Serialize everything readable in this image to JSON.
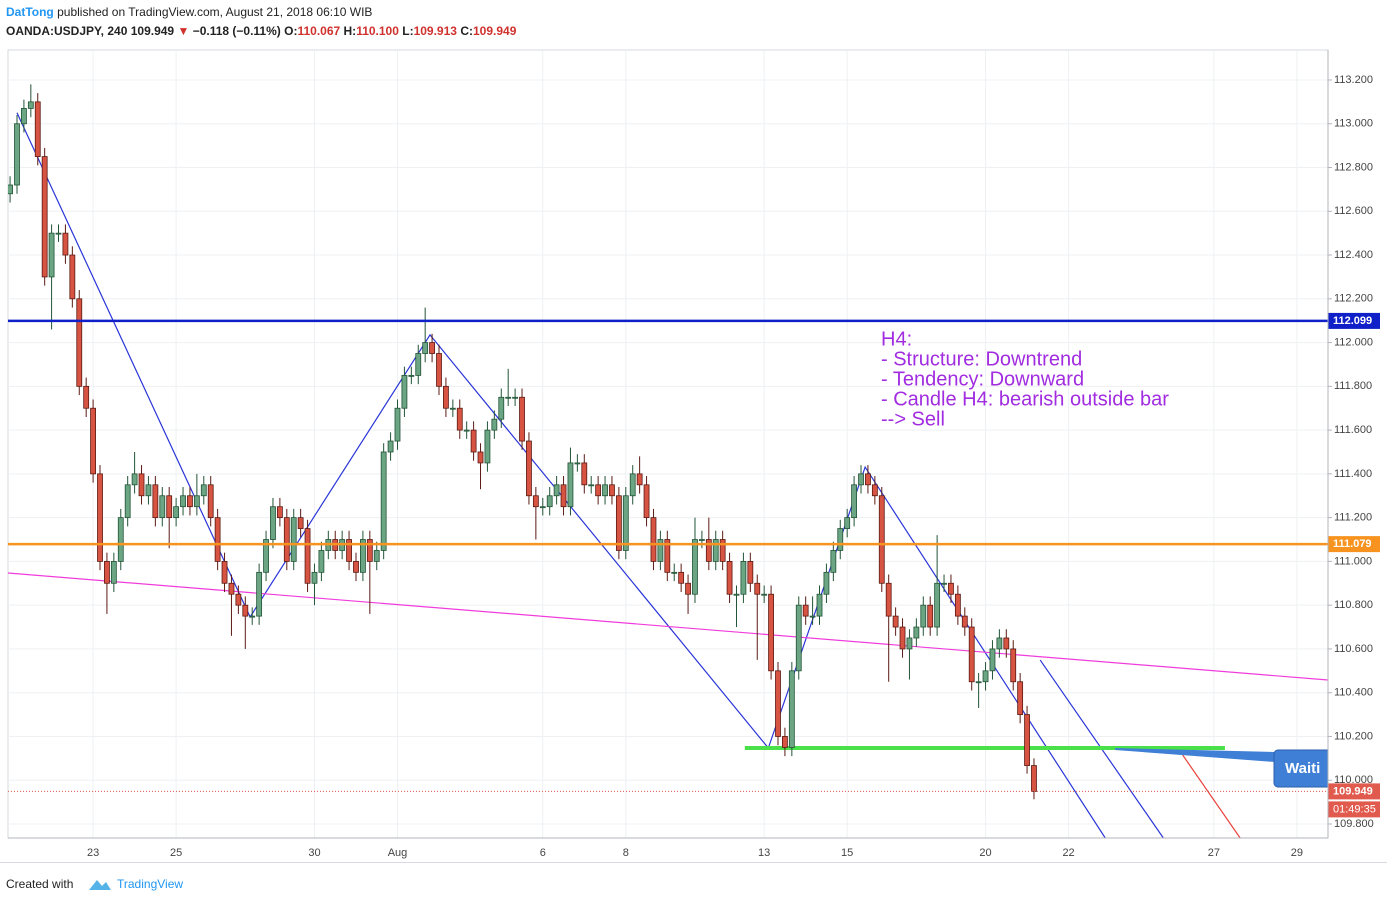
{
  "header": {
    "author": "DatTong",
    "published": " published on TradingView.com, August 21, 2018 06:10 WIB",
    "symbol": "OANDA:USDJPY, 240",
    "price": "109.949",
    "arrow": "▼",
    "change": "−0.118 (−0.11%)",
    "o_label": "O:",
    "o": "110.067",
    "h_label": "H:",
    "h": "110.100",
    "l_label": "L:",
    "l": "109.913",
    "c_label": "C:",
    "c": "109.949"
  },
  "footer": {
    "created": "Created with",
    "brand": "TradingView"
  },
  "chart_data": {
    "type": "candlestick",
    "up_color": "#6ba583",
    "down_color": "#d75442",
    "grid": true,
    "xlim": [
      -0.3,
      190.5
    ],
    "ylim": [
      109.736,
      113.337
    ],
    "xticks": [
      {
        "value": 12,
        "label": "23"
      },
      {
        "value": 24,
        "label": "25"
      },
      {
        "value": 44,
        "label": "30"
      },
      {
        "value": 56,
        "label": "Aug"
      },
      {
        "value": 77,
        "label": "6"
      },
      {
        "value": 89,
        "label": "8"
      },
      {
        "value": 109,
        "label": "13"
      },
      {
        "value": 121,
        "label": "15"
      },
      {
        "value": 141,
        "label": "20"
      },
      {
        "value": 153,
        "label": "22"
      },
      {
        "value": 174,
        "label": "27"
      },
      {
        "value": 186,
        "label": "29"
      }
    ],
    "yticks": [
      {
        "value": 109.8,
        "label": "109.800"
      },
      {
        "value": 110.0,
        "label": "110.000"
      },
      {
        "value": 110.2,
        "label": "110.200"
      },
      {
        "value": 110.4,
        "label": "110.400"
      },
      {
        "value": 110.6,
        "label": "110.600"
      },
      {
        "value": 110.8,
        "label": "110.800"
      },
      {
        "value": 111.0,
        "label": "111.000"
      },
      {
        "value": 111.2,
        "label": "111.200"
      },
      {
        "value": 111.4,
        "label": "111.400"
      },
      {
        "value": 111.6,
        "label": "111.600"
      },
      {
        "value": 111.8,
        "label": "111.800"
      },
      {
        "value": 112.0,
        "label": "112.000"
      },
      {
        "value": 112.2,
        "label": "112.200"
      },
      {
        "value": 112.4,
        "label": "112.400"
      },
      {
        "value": 112.6,
        "label": "112.600"
      },
      {
        "value": 112.8,
        "label": "112.800"
      },
      {
        "value": 113.0,
        "label": "113.000"
      },
      {
        "value": 113.2,
        "label": "113.200"
      }
    ],
    "ohlc": [
      [
        112.68,
        112.76,
        112.64,
        112.72
      ],
      [
        112.72,
        113.04,
        112.68,
        113.0
      ],
      [
        113.0,
        113.11,
        112.96,
        113.07
      ],
      [
        113.07,
        113.18,
        113.03,
        113.1
      ],
      [
        113.1,
        113.14,
        112.81,
        112.85
      ],
      [
        112.85,
        112.89,
        112.26,
        112.3
      ],
      [
        112.3,
        112.54,
        112.06,
        112.5
      ],
      [
        112.5,
        112.54,
        112.46,
        112.5
      ],
      [
        112.5,
        112.54,
        112.36,
        112.4
      ],
      [
        112.4,
        112.44,
        112.16,
        112.2
      ],
      [
        112.2,
        112.24,
        111.76,
        111.8
      ],
      [
        111.8,
        111.84,
        111.66,
        111.7
      ],
      [
        111.7,
        111.74,
        111.36,
        111.4
      ],
      [
        111.4,
        111.44,
        110.96,
        111.0
      ],
      [
        111.0,
        111.04,
        110.76,
        110.9
      ],
      [
        110.9,
        111.04,
        110.86,
        111.0
      ],
      [
        111.0,
        111.24,
        110.96,
        111.2
      ],
      [
        111.2,
        111.39,
        111.16,
        111.35
      ],
      [
        111.35,
        111.5,
        111.31,
        111.4
      ],
      [
        111.4,
        111.44,
        111.26,
        111.3
      ],
      [
        111.3,
        111.39,
        111.26,
        111.35
      ],
      [
        111.35,
        111.39,
        111.16,
        111.2
      ],
      [
        111.2,
        111.34,
        111.16,
        111.3
      ],
      [
        111.3,
        111.34,
        111.06,
        111.2
      ],
      [
        111.2,
        111.29,
        111.16,
        111.25
      ],
      [
        111.25,
        111.34,
        111.21,
        111.3
      ],
      [
        111.3,
        111.34,
        111.21,
        111.25
      ],
      [
        111.25,
        111.4,
        111.21,
        111.3
      ],
      [
        111.3,
        111.39,
        111.26,
        111.35
      ],
      [
        111.35,
        111.39,
        111.16,
        111.2
      ],
      [
        111.2,
        111.24,
        110.96,
        111.0
      ],
      [
        111.0,
        111.04,
        110.86,
        110.9
      ],
      [
        110.9,
        110.94,
        110.66,
        110.85
      ],
      [
        110.85,
        110.89,
        110.76,
        110.8
      ],
      [
        110.8,
        110.84,
        110.6,
        110.75
      ],
      [
        110.75,
        110.79,
        110.71,
        110.75
      ],
      [
        110.75,
        110.99,
        110.71,
        110.95
      ],
      [
        110.95,
        111.14,
        110.91,
        111.1
      ],
      [
        111.1,
        111.29,
        111.06,
        111.25
      ],
      [
        111.25,
        111.29,
        111.16,
        111.2
      ],
      [
        111.2,
        111.24,
        110.96,
        111.0
      ],
      [
        111.0,
        111.24,
        110.96,
        111.2
      ],
      [
        111.2,
        111.24,
        111.11,
        111.15
      ],
      [
        111.15,
        111.19,
        110.86,
        110.9
      ],
      [
        110.9,
        110.99,
        110.8,
        110.95
      ],
      [
        110.95,
        111.09,
        110.91,
        111.05
      ],
      [
        111.05,
        111.14,
        111.01,
        111.1
      ],
      [
        111.1,
        111.14,
        111.01,
        111.05
      ],
      [
        111.05,
        111.14,
        111.01,
        111.1
      ],
      [
        111.1,
        111.14,
        110.96,
        111.0
      ],
      [
        111.0,
        111.04,
        110.91,
        110.95
      ],
      [
        110.95,
        111.14,
        110.91,
        111.1
      ],
      [
        111.1,
        111.14,
        110.76,
        111.0
      ],
      [
        111.0,
        111.09,
        110.96,
        111.05
      ],
      [
        111.05,
        111.54,
        111.01,
        111.5
      ],
      [
        111.5,
        111.59,
        111.46,
        111.55
      ],
      [
        111.55,
        111.74,
        111.51,
        111.7
      ],
      [
        111.7,
        111.89,
        111.66,
        111.85
      ],
      [
        111.85,
        111.89,
        111.81,
        111.85
      ],
      [
        111.85,
        111.99,
        111.81,
        111.95
      ],
      [
        111.95,
        112.16,
        111.91,
        112.0
      ],
      [
        112.0,
        112.04,
        111.91,
        111.95
      ],
      [
        111.95,
        111.99,
        111.76,
        111.8
      ],
      [
        111.8,
        111.84,
        111.66,
        111.7
      ],
      [
        111.7,
        111.74,
        111.66,
        111.7
      ],
      [
        111.7,
        111.74,
        111.56,
        111.6
      ],
      [
        111.6,
        111.64,
        111.56,
        111.6
      ],
      [
        111.6,
        111.64,
        111.46,
        111.5
      ],
      [
        111.5,
        111.54,
        111.33,
        111.45
      ],
      [
        111.45,
        111.64,
        111.41,
        111.6
      ],
      [
        111.6,
        111.69,
        111.56,
        111.65
      ],
      [
        111.65,
        111.79,
        111.61,
        111.75
      ],
      [
        111.75,
        111.88,
        111.71,
        111.75
      ],
      [
        111.75,
        111.79,
        111.71,
        111.75
      ],
      [
        111.75,
        111.79,
        111.51,
        111.55
      ],
      [
        111.55,
        111.59,
        111.26,
        111.3
      ],
      [
        111.3,
        111.34,
        111.1,
        111.25
      ],
      [
        111.25,
        111.29,
        111.21,
        111.25
      ],
      [
        111.25,
        111.34,
        111.21,
        111.3
      ],
      [
        111.3,
        111.39,
        111.26,
        111.35
      ],
      [
        111.35,
        111.39,
        111.21,
        111.25
      ],
      [
        111.25,
        111.52,
        111.21,
        111.45
      ],
      [
        111.45,
        111.49,
        111.41,
        111.45
      ],
      [
        111.45,
        111.49,
        111.31,
        111.35
      ],
      [
        111.35,
        111.39,
        111.31,
        111.35
      ],
      [
        111.35,
        111.39,
        111.26,
        111.3
      ],
      [
        111.3,
        111.39,
        111.26,
        111.35
      ],
      [
        111.35,
        111.39,
        111.26,
        111.3
      ],
      [
        111.3,
        111.34,
        111.01,
        111.05
      ],
      [
        111.05,
        111.34,
        111.01,
        111.3
      ],
      [
        111.3,
        111.44,
        111.26,
        111.4
      ],
      [
        111.4,
        111.48,
        111.31,
        111.35
      ],
      [
        111.35,
        111.39,
        111.16,
        111.2
      ],
      [
        111.2,
        111.24,
        110.96,
        111.0
      ],
      [
        111.0,
        111.14,
        110.96,
        111.1
      ],
      [
        111.1,
        111.14,
        110.91,
        110.95
      ],
      [
        110.95,
        110.99,
        110.91,
        110.95
      ],
      [
        110.95,
        110.99,
        110.86,
        110.9
      ],
      [
        110.9,
        110.94,
        110.76,
        110.85
      ],
      [
        110.85,
        111.2,
        110.81,
        111.1
      ],
      [
        111.1,
        111.14,
        111.06,
        111.1
      ],
      [
        111.1,
        111.2,
        110.96,
        111.0
      ],
      [
        111.0,
        111.14,
        110.96,
        111.1
      ],
      [
        111.1,
        111.14,
        110.96,
        111.0
      ],
      [
        111.0,
        111.04,
        110.81,
        110.85
      ],
      [
        110.85,
        110.89,
        110.7,
        110.85
      ],
      [
        110.85,
        111.04,
        110.81,
        111.0
      ],
      [
        111.0,
        111.04,
        110.86,
        110.9
      ],
      [
        110.9,
        110.94,
        110.55,
        110.85
      ],
      [
        110.85,
        110.89,
        110.81,
        110.85
      ],
      [
        110.85,
        110.89,
        110.46,
        110.5
      ],
      [
        110.5,
        110.54,
        110.16,
        110.2
      ],
      [
        110.2,
        110.24,
        110.11,
        110.15
      ],
      [
        110.15,
        110.54,
        110.11,
        110.5
      ],
      [
        110.5,
        110.84,
        110.46,
        110.8
      ],
      [
        110.8,
        110.84,
        110.71,
        110.75
      ],
      [
        110.75,
        110.84,
        110.71,
        110.75
      ],
      [
        110.75,
        110.89,
        110.71,
        110.85
      ],
      [
        110.85,
        110.99,
        110.81,
        110.95
      ],
      [
        110.95,
        111.09,
        110.91,
        111.05
      ],
      [
        111.05,
        111.19,
        111.01,
        111.15
      ],
      [
        111.15,
        111.24,
        111.11,
        111.2
      ],
      [
        111.2,
        111.39,
        111.16,
        111.35
      ],
      [
        111.35,
        111.44,
        111.31,
        111.4
      ],
      [
        111.4,
        111.44,
        111.31,
        111.35
      ],
      [
        111.35,
        111.39,
        111.26,
        111.3
      ],
      [
        111.3,
        111.34,
        110.86,
        110.9
      ],
      [
        110.9,
        110.94,
        110.45,
        110.75
      ],
      [
        110.75,
        110.79,
        110.66,
        110.7
      ],
      [
        110.7,
        110.74,
        110.56,
        110.6
      ],
      [
        110.6,
        110.69,
        110.46,
        110.65
      ],
      [
        110.65,
        110.74,
        110.61,
        110.7
      ],
      [
        110.7,
        110.84,
        110.66,
        110.8
      ],
      [
        110.8,
        110.84,
        110.66,
        110.7
      ],
      [
        110.7,
        111.12,
        110.66,
        110.9
      ],
      [
        110.9,
        110.94,
        110.86,
        110.9
      ],
      [
        110.9,
        110.94,
        110.81,
        110.85
      ],
      [
        110.85,
        110.89,
        110.71,
        110.75
      ],
      [
        110.75,
        110.79,
        110.66,
        110.7
      ],
      [
        110.7,
        110.74,
        110.41,
        110.45
      ],
      [
        110.45,
        110.49,
        110.33,
        110.45
      ],
      [
        110.45,
        110.54,
        110.41,
        110.5
      ],
      [
        110.5,
        110.64,
        110.46,
        110.6
      ],
      [
        110.6,
        110.69,
        110.56,
        110.65
      ],
      [
        110.65,
        110.69,
        110.56,
        110.6
      ],
      [
        110.6,
        110.64,
        110.41,
        110.45
      ],
      [
        110.45,
        110.49,
        110.26,
        110.3
      ],
      [
        110.3,
        110.34,
        110.03,
        110.067
      ],
      [
        110.067,
        110.1,
        109.913,
        109.949
      ]
    ],
    "levels": [
      {
        "value": 112.099,
        "color": "#1020c8"
      },
      {
        "value": 111.079,
        "color": "#f7931e"
      }
    ],
    "last": {
      "value": 109.949,
      "color": "#e05a4e",
      "countdown": "01:49:35"
    },
    "lines": [
      {
        "color": "#2a35d8",
        "x": [
          1.0,
          34.7,
          60.7,
          109.6,
          123.6,
          158.3
        ],
        "y": [
          113.05,
          110.746,
          112.035,
          110.147,
          111.431,
          109.736
        ]
      },
      {
        "color": "#2a35d8",
        "x": [
          148.9,
          166.7
        ],
        "y": [
          110.549,
          109.736
        ]
      },
      {
        "color": "#e8413a",
        "x": [
          169.5,
          177.8
        ],
        "y": [
          110.115,
          109.736
        ]
      },
      {
        "color": "#f03cdc",
        "x": [
          -0.3,
          190.5
        ],
        "y": [
          110.947,
          110.458
        ]
      },
      {
        "color": "#49e04a",
        "x": [
          106.2,
          175.6
        ],
        "y": [
          110.147,
          110.147
        ],
        "width": 4
      }
    ],
    "annotation": [
      "H4:",
      "- Structure: Downtrend",
      "- Tendency: Downward",
      "- Candle H4: bearish outside bar",
      "--> Sell"
    ],
    "callout": "Waiti"
  }
}
